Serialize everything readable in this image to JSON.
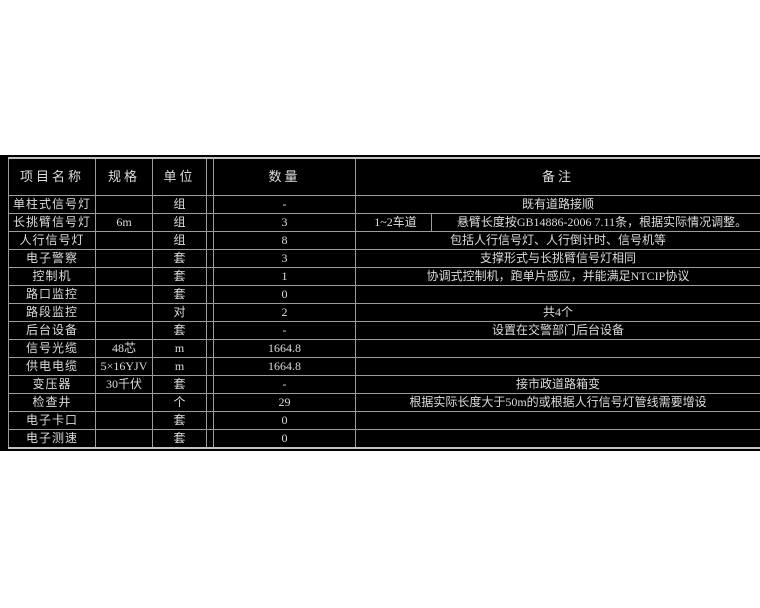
{
  "colors": {
    "page_background": "#ffffff",
    "panel_background": "#000000",
    "grid_line": "#9c9c9c",
    "outer_border": "#c2c2c2",
    "text": "#dcdcdc"
  },
  "table": {
    "headers": {
      "name": "项目名称",
      "spec": "规格",
      "unit": "单位",
      "qty": "数量",
      "remark": "备注"
    },
    "rows": [
      {
        "name": "单柱式信号灯",
        "spec": "",
        "unit": "组",
        "qty": "-",
        "remark": "既有道路接顺"
      },
      {
        "name": "长挑臂信号灯",
        "spec": "6m",
        "unit": "组",
        "qty": "3",
        "split": true,
        "remark_a": "1~2车道",
        "remark_b": "悬臂长度按GB14886-2006 7.11条，根据实际情况调整。"
      },
      {
        "name": "人行信号灯",
        "spec": "",
        "unit": "组",
        "qty": "8",
        "remark": "包括人行信号灯、人行倒计时、信号机等"
      },
      {
        "name": "电子警察",
        "spec": "",
        "unit": "套",
        "qty": "3",
        "remark": "支撑形式与长挑臂信号灯相同"
      },
      {
        "name": "控制机",
        "spec": "",
        "unit": "套",
        "qty": "1",
        "remark": "协调式控制机，跑单片感应，并能满足NTCIP协议"
      },
      {
        "name": "路口监控",
        "spec": "",
        "unit": "套",
        "qty": "0",
        "remark": ""
      },
      {
        "name": "路段监控",
        "spec": "",
        "unit": "对",
        "qty": "2",
        "remark": "共4个"
      },
      {
        "name": "后台设备",
        "spec": "",
        "unit": "套",
        "qty": "-",
        "remark": "设置在交警部门后台设备"
      },
      {
        "name": "信号光缆",
        "spec": "48芯",
        "unit": "m",
        "qty": "1664.8",
        "remark": ""
      },
      {
        "name": "供电电缆",
        "spec": "5×16YJV",
        "unit": "m",
        "qty": "1664.8",
        "remark": ""
      },
      {
        "name": "变压器",
        "spec": "30千伏",
        "unit": "套",
        "qty": "-",
        "remark": "接市政道路箱变",
        "remark_center": true
      },
      {
        "name": "检查井",
        "spec": "",
        "unit": "个",
        "qty": "29",
        "remark": "根据实际长度大于50m的或根据人行信号灯管线需要增设"
      },
      {
        "name": "电子卡口",
        "spec": "",
        "unit": "套",
        "qty": "0",
        "remark": ""
      },
      {
        "name": "电子测速",
        "spec": "",
        "unit": "套",
        "qty": "0",
        "remark": ""
      }
    ]
  }
}
